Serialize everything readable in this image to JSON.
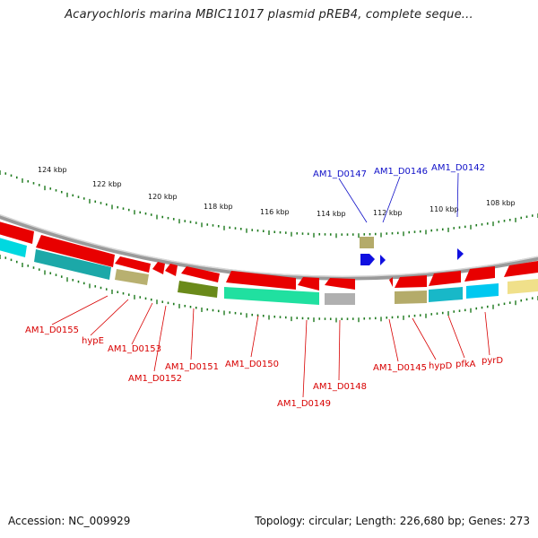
{
  "title": "Acaryochloris marina MBIC11017 plasmid pREB4, complete seque...",
  "footer": {
    "accession": "Accession: NC_009929",
    "summary": "Topology: circular; Length: 226,680 bp; Genes: 273"
  },
  "colors": {
    "forward_label": "#1010c8",
    "reverse_label": "#d80000",
    "tick": "#1e7a1e",
    "backbone": "#888888"
  },
  "scale_labels": [
    "124 kbp",
    "122 kbp",
    "120 kbp",
    "118 kbp",
    "116 kbp",
    "114 kbp",
    "112 kbp",
    "110 kbp",
    "108 kbp"
  ],
  "forward_genes": [
    {
      "label": "AM1_D0147"
    },
    {
      "label": "AM1_D0146"
    },
    {
      "label": "AM1_D0142"
    }
  ],
  "reverse_genes": [
    {
      "label": "AM1_D0155"
    },
    {
      "label": "hypE"
    },
    {
      "label": "AM1_D0153"
    },
    {
      "label": "AM1_D0152"
    },
    {
      "label": "AM1_D0151"
    },
    {
      "label": "AM1_D0150"
    },
    {
      "label": "AM1_D0149"
    },
    {
      "label": "AM1_D0148"
    },
    {
      "label": "AM1_D0145"
    },
    {
      "label": "hypD"
    },
    {
      "label": "pfkA"
    },
    {
      "label": "pyrD"
    }
  ]
}
